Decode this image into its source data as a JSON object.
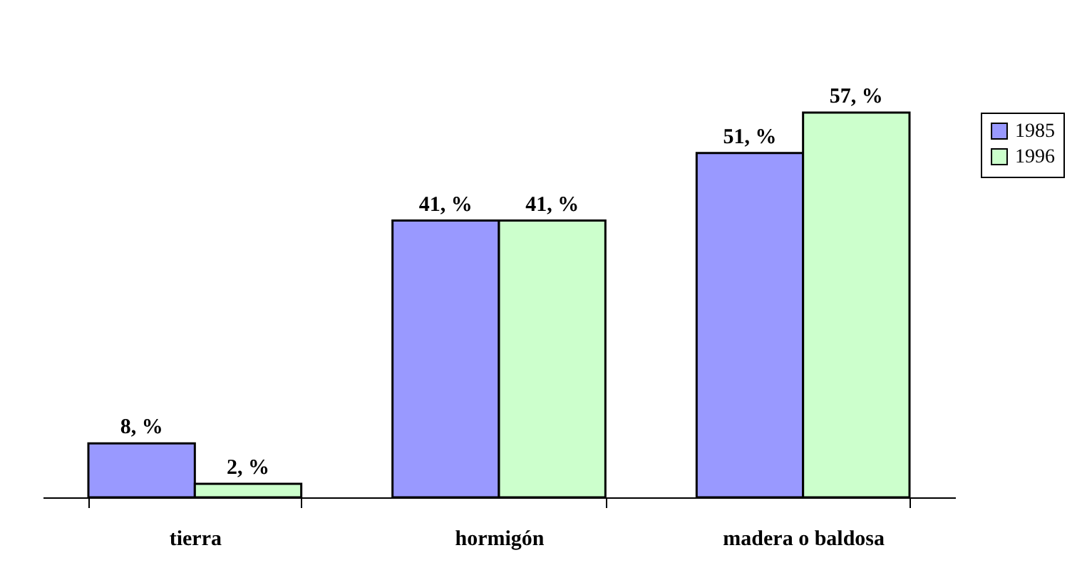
{
  "chart_data": {
    "type": "bar",
    "categories": [
      "tierra",
      "hormigón",
      "madera o baldosa"
    ],
    "series": [
      {
        "name": "1985",
        "color": "#9999ff",
        "values": [
          8,
          41,
          51
        ],
        "value_labels": [
          "8, %",
          "41, %",
          "51, %"
        ]
      },
      {
        "name": "1996",
        "color": "#ccffcc",
        "values": [
          2,
          41,
          57
        ],
        "value_labels": [
          "2, %",
          "41, %",
          "57, %"
        ]
      }
    ],
    "legend": "right",
    "grid": false,
    "tick_labels": "x"
  }
}
